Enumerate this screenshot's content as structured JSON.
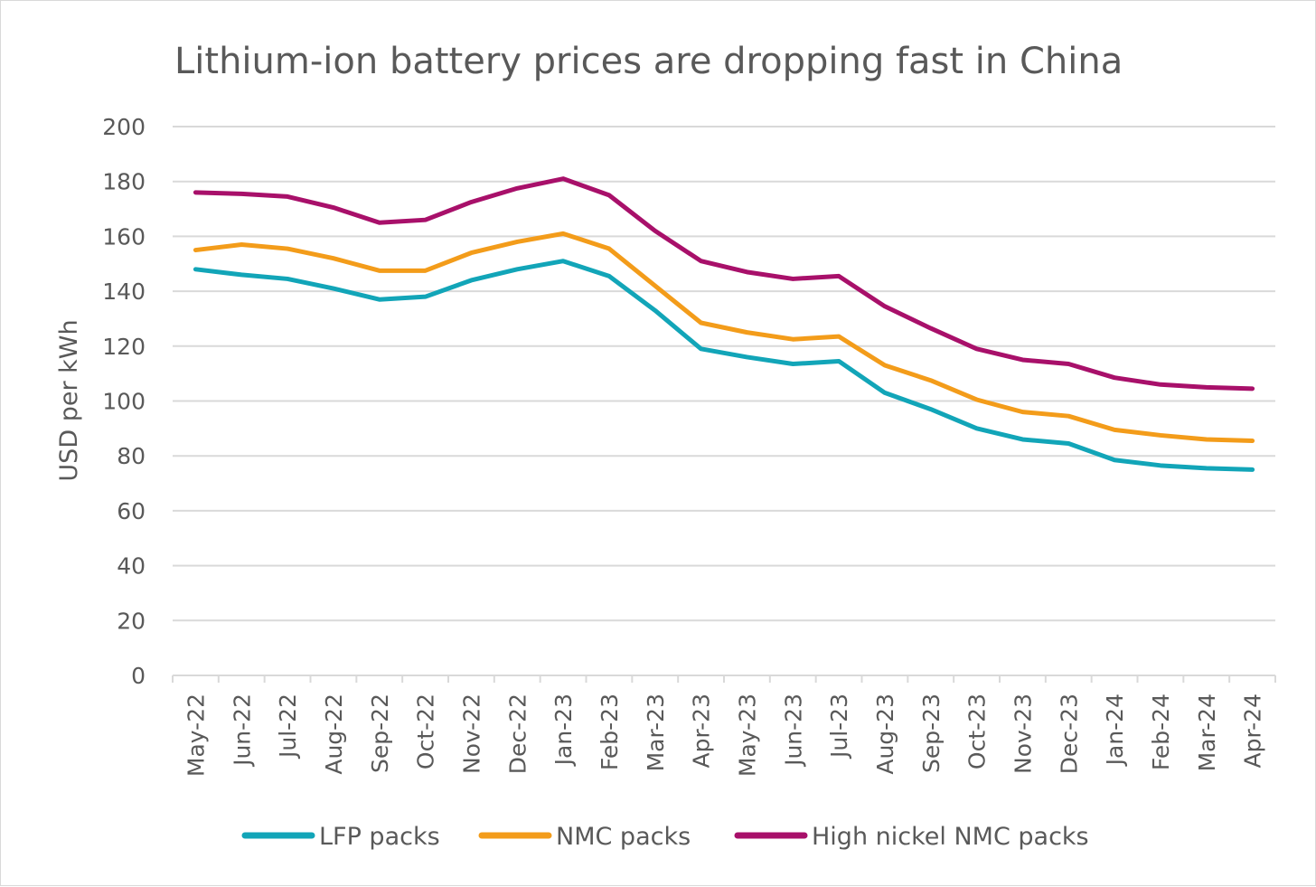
{
  "chart_data": {
    "type": "line",
    "title": "Lithium-ion battery prices are dropping fast in China",
    "xlabel": "",
    "ylabel": "USD per kWh",
    "ylim": [
      0,
      200
    ],
    "yticks": [
      0,
      20,
      40,
      60,
      80,
      100,
      120,
      140,
      160,
      180,
      200
    ],
    "grid": true,
    "legend_position": "bottom",
    "categories": [
      "May-22",
      "Jun-22",
      "Jul-22",
      "Aug-22",
      "Sep-22",
      "Oct-22",
      "Nov-22",
      "Dec-22",
      "Jan-23",
      "Feb-23",
      "Mar-23",
      "Apr-23",
      "May-23",
      "Jun-23",
      "Jul-23",
      "Aug-23",
      "Sep-23",
      "Oct-23",
      "Nov-23",
      "Dec-23",
      "Jan-24",
      "Feb-24",
      "Mar-24",
      "Apr-24"
    ],
    "series": [
      {
        "name": "LFP packs",
        "color": "#12A5B8",
        "values": [
          148,
          146,
          144.5,
          141,
          137,
          138,
          144,
          148,
          151,
          145.5,
          133,
          119,
          116,
          113.5,
          114.5,
          103,
          97,
          90,
          86,
          84.5,
          78.5,
          76.5,
          75.5,
          75
        ]
      },
      {
        "name": "NMC packs",
        "color": "#F39C1A",
        "values": [
          155,
          157,
          155.5,
          152,
          147.5,
          147.5,
          154,
          158,
          161,
          155.5,
          142,
          128.5,
          125,
          122.5,
          123.5,
          113,
          107.5,
          100.5,
          96,
          94.5,
          89.5,
          87.5,
          86,
          85.5
        ]
      },
      {
        "name": "High nickel NMC packs",
        "color": "#A8106A",
        "values": [
          176,
          175.5,
          174.5,
          170.5,
          165,
          166,
          172.5,
          177.5,
          181,
          175,
          162,
          151,
          147,
          144.5,
          145.5,
          134.5,
          126.5,
          119,
          115,
          113.5,
          108.5,
          106,
          105,
          104.5
        ]
      }
    ]
  }
}
